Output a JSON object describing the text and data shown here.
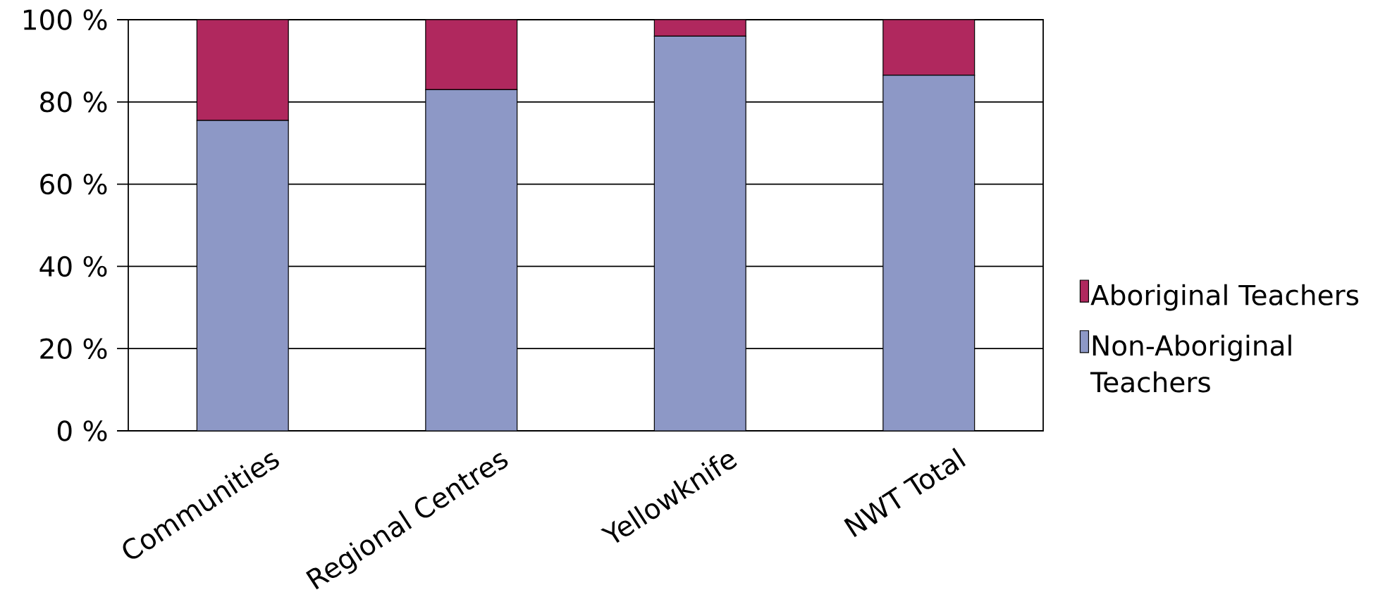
{
  "chart_data": {
    "type": "bar",
    "stacked": true,
    "categories": [
      "Communities",
      "Regional Centres",
      "Yellowknife",
      "NWT Total"
    ],
    "series": [
      {
        "name": "Non-Aboriginal Teachers",
        "color": "#8d98c6",
        "values": [
          75.5,
          83,
          96,
          86.5
        ]
      },
      {
        "name": "Aboriginal Teachers",
        "color": "#b0285e",
        "values": [
          24.5,
          17,
          4,
          13.5
        ]
      }
    ],
    "ylim": [
      0,
      100
    ],
    "yticks": [
      {
        "value": 0,
        "label": "0 %"
      },
      {
        "value": 20,
        "label": "20 %"
      },
      {
        "value": 40,
        "label": "40 %"
      },
      {
        "value": 60,
        "label": "60 %"
      },
      {
        "value": 80,
        "label": "80 %"
      },
      {
        "value": 100,
        "label": "100 %"
      }
    ],
    "grid": "y",
    "legend": "right"
  }
}
